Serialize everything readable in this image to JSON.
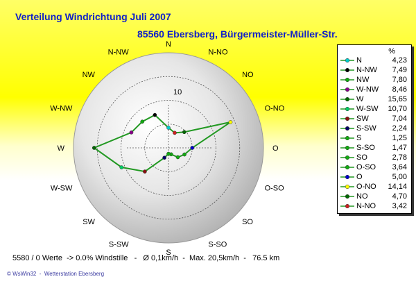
{
  "header": {
    "title": "Verteilung Windrichtung   Juli 2007",
    "subtitle": "85560 Ebersberg, Bürgermeister-Müller-Str."
  },
  "chart_data": {
    "type": "radar",
    "radial_label": "10",
    "radial_ticks": [
      5,
      10,
      15
    ],
    "radial_max": 20,
    "directions": [
      "N",
      "N-NO",
      "NO",
      "O-NO",
      "O",
      "O-SO",
      "SO",
      "S-SO",
      "S",
      "S-SW",
      "SW",
      "W-SW",
      "W",
      "W-NW",
      "NW",
      "N-NW"
    ],
    "values": [
      4.23,
      3.42,
      4.7,
      14.14,
      5.0,
      3.64,
      2.78,
      1.47,
      1.25,
      2.24,
      7.04,
      10.7,
      15.65,
      8.46,
      7.8,
      7.49
    ],
    "marker_colors": [
      "#00cccc",
      "#cc2222",
      "#006600",
      "#ffff00",
      "#0000cc",
      "#11aa11",
      "#11aa11",
      "#11aa11",
      "#11aa11",
      "#000066",
      "#881111",
      "#00cc66",
      "#006600",
      "#880088",
      "#11aa11",
      "#000000"
    ],
    "line_color": "#229922",
    "grid": true
  },
  "legend": {
    "header": "%",
    "items": [
      {
        "label": "N",
        "value": "4,23",
        "color": "#00cccc"
      },
      {
        "label": "N-NW",
        "value": "7,49",
        "color": "#000000"
      },
      {
        "label": "NW",
        "value": "7,80",
        "color": "#11aa11"
      },
      {
        "label": "W-NW",
        "value": "8,46",
        "color": "#880088"
      },
      {
        "label": "W",
        "value": "15,65",
        "color": "#006600"
      },
      {
        "label": "W-SW",
        "value": "10,70",
        "color": "#00cc66"
      },
      {
        "label": "SW",
        "value": "7,04",
        "color": "#881111"
      },
      {
        "label": "S-SW",
        "value": "2,24",
        "color": "#000066"
      },
      {
        "label": "S",
        "value": "1,25",
        "color": "#11aa11"
      },
      {
        "label": "S-SO",
        "value": "1,47",
        "color": "#11aa11"
      },
      {
        "label": "SO",
        "value": "2,78",
        "color": "#11aa11"
      },
      {
        "label": "O-SO",
        "value": "3,64",
        "color": "#11aa11"
      },
      {
        "label": "O",
        "value": "5,00",
        "color": "#0000cc"
      },
      {
        "label": "O-NO",
        "value": "14,14",
        "color": "#ffff00"
      },
      {
        "label": "NO",
        "value": "4,70",
        "color": "#006600"
      },
      {
        "label": "N-NO",
        "value": "3,42",
        "color": "#cc2222"
      }
    ]
  },
  "footer": {
    "stats": "5580 / 0 Werte  -> 0.0% Windstille   -   Ø 0,1km/h  -  Max. 20,5km/h  -   76.5 km",
    "credit": "© WsWin32  -  Wetterstation Ebersberg"
  }
}
